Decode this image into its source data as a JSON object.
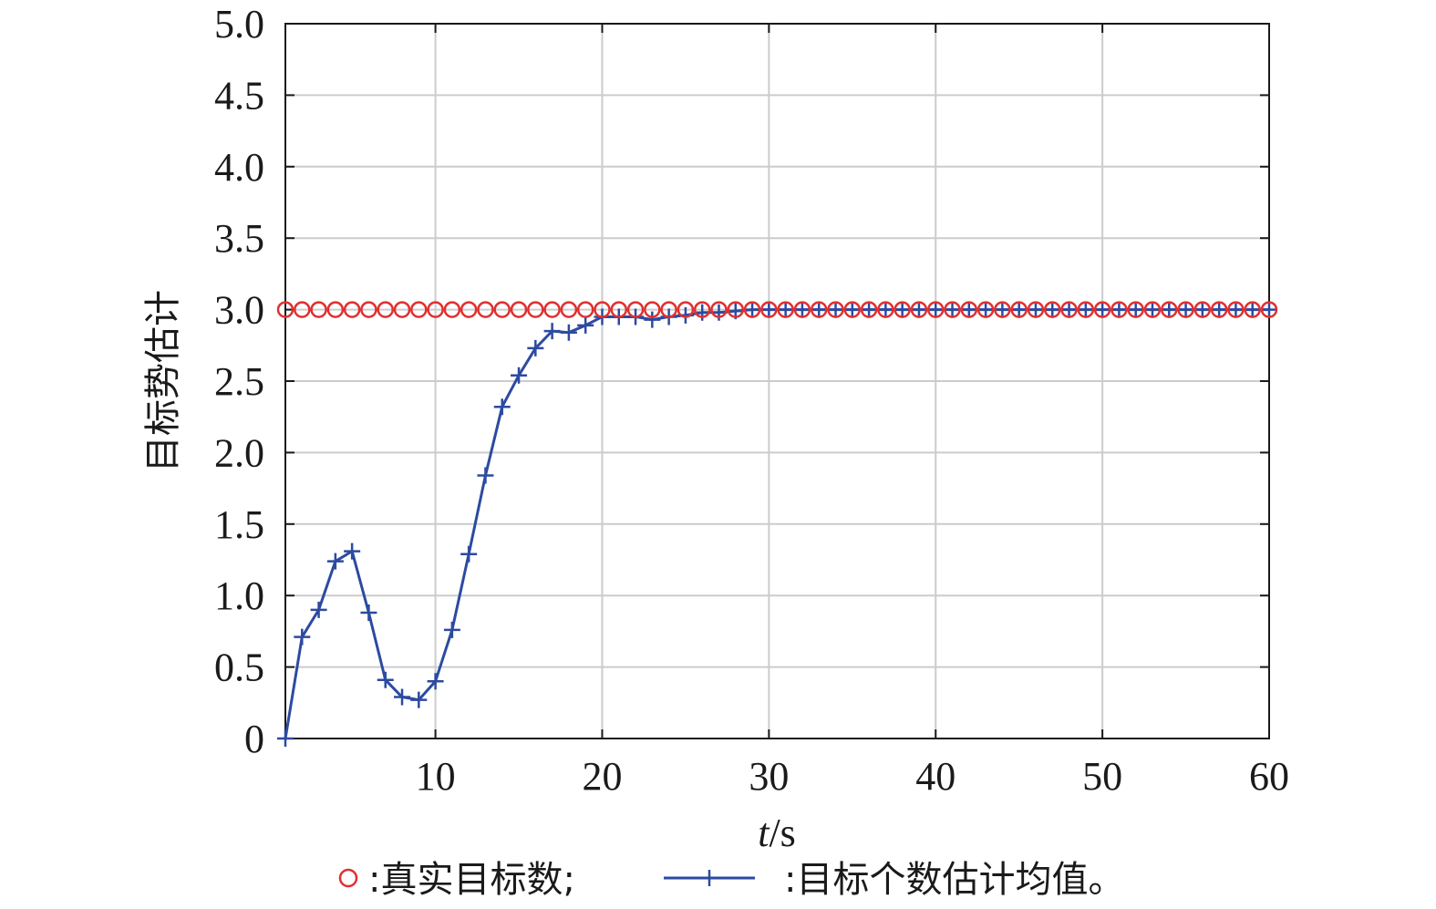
{
  "chart_data": {
    "type": "line",
    "ylabel": "目标势估计",
    "xlabel_italic": "t",
    "xlabel_unit": "/s",
    "xlim": [
      1,
      60
    ],
    "ylim": [
      0,
      5
    ],
    "xticks": [
      10,
      20,
      30,
      40,
      50,
      60
    ],
    "yticks": [
      "0",
      "0.5",
      "1.0",
      "1.5",
      "2.0",
      "2.5",
      "3.0",
      "3.5",
      "4.0",
      "4.5",
      "5.0"
    ],
    "grid": true,
    "legend_position": "bottom",
    "colors": {
      "true": "#e03030",
      "estimate": "#2c4aa0"
    },
    "series": [
      {
        "name": "真实目标数;",
        "marker": "circle",
        "x": [
          1,
          2,
          3,
          4,
          5,
          6,
          7,
          8,
          9,
          10,
          11,
          12,
          13,
          14,
          15,
          16,
          17,
          18,
          19,
          20,
          21,
          22,
          23,
          24,
          25,
          26,
          27,
          28,
          29,
          30,
          31,
          32,
          33,
          34,
          35,
          36,
          37,
          38,
          39,
          40,
          41,
          42,
          43,
          44,
          45,
          46,
          47,
          48,
          49,
          50,
          51,
          52,
          53,
          54,
          55,
          56,
          57,
          58,
          59,
          60
        ],
        "values": [
          3,
          3,
          3,
          3,
          3,
          3,
          3,
          3,
          3,
          3,
          3,
          3,
          3,
          3,
          3,
          3,
          3,
          3,
          3,
          3,
          3,
          3,
          3,
          3,
          3,
          3,
          3,
          3,
          3,
          3,
          3,
          3,
          3,
          3,
          3,
          3,
          3,
          3,
          3,
          3,
          3,
          3,
          3,
          3,
          3,
          3,
          3,
          3,
          3,
          3,
          3,
          3,
          3,
          3,
          3,
          3,
          3,
          3,
          3,
          3
        ]
      },
      {
        "name": "目标个数估计均值。",
        "marker": "plus",
        "x": [
          1,
          2,
          3,
          4,
          5,
          6,
          7,
          8,
          9,
          10,
          11,
          12,
          13,
          14,
          15,
          16,
          17,
          18,
          19,
          20,
          21,
          22,
          23,
          24,
          25,
          26,
          27,
          28,
          29,
          30,
          31,
          32,
          33,
          34,
          35,
          36,
          37,
          38,
          39,
          40,
          41,
          42,
          43,
          44,
          45,
          46,
          47,
          48,
          49,
          50,
          51,
          52,
          53,
          54,
          55,
          56,
          57,
          58,
          59,
          60
        ],
        "values": [
          0,
          0.71,
          0.9,
          1.24,
          1.31,
          0.88,
          0.41,
          0.29,
          0.27,
          0.4,
          0.76,
          1.29,
          1.84,
          2.32,
          2.54,
          2.73,
          2.85,
          2.84,
          2.89,
          2.95,
          2.95,
          2.95,
          2.93,
          2.95,
          2.96,
          2.98,
          2.98,
          2.99,
          3,
          3,
          3,
          3,
          3,
          3,
          3,
          3,
          3,
          3,
          3,
          3,
          3,
          3,
          3,
          3,
          3,
          3,
          3,
          3,
          3,
          3,
          3,
          3,
          3,
          3,
          3,
          3,
          3,
          3,
          3,
          3
        ]
      }
    ]
  }
}
